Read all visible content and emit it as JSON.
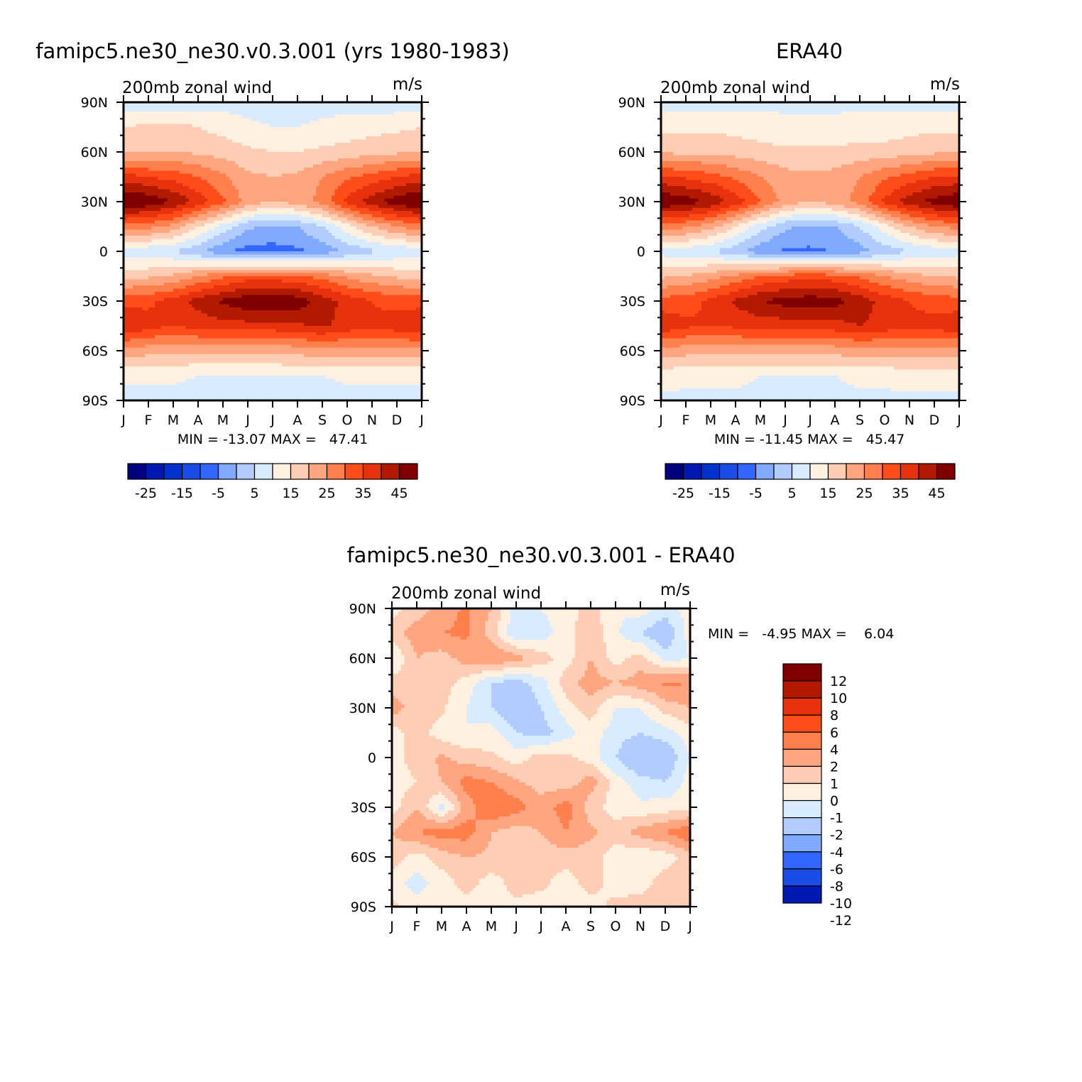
{
  "colors": {
    "diverging16": [
      "#00007f",
      "#0019b2",
      "#0033cc",
      "#1a4de6",
      "#3366ff",
      "#80aaff",
      "#b3ccff",
      "#d9ebff",
      "#fff0e0",
      "#ffcdb3",
      "#ffa680",
      "#ff7f4d",
      "#ff4d1a",
      "#e6330d",
      "#b21a00",
      "#800000"
    ],
    "diff14": [
      "#800000",
      "#b21a00",
      "#e6330d",
      "#ff4d1a",
      "#ff7f4d",
      "#ffa680",
      "#ffcdb3",
      "#fff0e0",
      "#d9ebff",
      "#b3ccff",
      "#80aaff",
      "#3366ff",
      "#1a4de6",
      "#0019b2"
    ]
  },
  "panels": {
    "model": {
      "main_title": "famipc5.ne30_ne30.v0.3.001 (yrs 1980-1983)",
      "left_label": "200mb zonal wind",
      "right_label": "m/s",
      "minmax": "MIN = -13.07 MAX =   47.41"
    },
    "obs": {
      "main_title": "ERA40",
      "left_label": "200mb zonal wind",
      "right_label": "m/s",
      "minmax": "MIN = -11.45 MAX =   45.47"
    },
    "diff": {
      "main_title": "famipc5.ne30_ne30.v0.3.001 - ERA40",
      "left_label": "200mb zonal wind",
      "right_label": "m/s",
      "minmax": "MIN =   -4.95 MAX =    6.04"
    }
  },
  "chart_data": [
    {
      "type": "heatmap",
      "title": "famipc5.ne30_ne30.v0.3.001 (yrs 1980-1983)",
      "subtitle": "200mb zonal wind",
      "units": "m/s",
      "x_ticks": [
        "J",
        "F",
        "M",
        "A",
        "M",
        "J",
        "J",
        "A",
        "S",
        "O",
        "N",
        "D",
        "J"
      ],
      "y_ticks": [
        "90N",
        "60N",
        "30N",
        "0",
        "30S",
        "60S",
        "90S"
      ],
      "colorbar_levels": [
        "-25",
        "-15",
        "-5",
        "5",
        "15",
        "25",
        "35",
        "45"
      ],
      "stats": {
        "min": -13.07,
        "max": 47.41
      },
      "field": {
        "months": [
          0,
          1,
          2,
          3,
          4,
          5,
          6,
          7,
          8,
          9,
          10,
          11,
          12
        ],
        "lat": [
          90,
          75,
          60,
          45,
          30,
          15,
          0,
          -15,
          -30,
          -45,
          -60,
          -75,
          -90
        ],
        "values": [
          [
            2,
            2,
            1,
            2,
            3,
            3,
            2,
            2,
            3,
            3,
            2,
            2,
            2
          ],
          [
            10,
            11,
            12,
            10,
            8,
            6,
            5,
            5,
            6,
            7,
            8,
            9,
            10
          ],
          [
            14,
            14,
            15,
            14,
            13,
            11,
            10,
            10,
            11,
            12,
            13,
            14,
            14
          ],
          [
            32,
            30,
            28,
            25,
            21,
            16,
            15,
            16,
            20,
            24,
            27,
            30,
            32
          ],
          [
            46,
            44,
            40,
            33,
            26,
            18,
            15,
            17,
            22,
            32,
            38,
            43,
            46
          ],
          [
            23,
            22,
            18,
            10,
            3,
            -4,
            -6,
            -5,
            0,
            8,
            15,
            20,
            23
          ],
          [
            2,
            1,
            0,
            -4,
            -9,
            -12,
            -12,
            -11,
            -8,
            -4,
            -1,
            1,
            2
          ],
          [
            13,
            14,
            16,
            20,
            24,
            27,
            27,
            26,
            23,
            19,
            16,
            14,
            13
          ],
          [
            28,
            29,
            32,
            37,
            41,
            44,
            45,
            43,
            38,
            33,
            30,
            28,
            28
          ],
          [
            35,
            32,
            30,
            32,
            33,
            33,
            33,
            34,
            36,
            33,
            31,
            33,
            35
          ],
          [
            18,
            17,
            16,
            16,
            16,
            16,
            16,
            17,
            18,
            18,
            18,
            18,
            18
          ],
          [
            6,
            6,
            6,
            5,
            5,
            5,
            5,
            5,
            5,
            6,
            6,
            6,
            6
          ],
          [
            3,
            3,
            3,
            3,
            3,
            3,
            3,
            3,
            3,
            3,
            3,
            3,
            3
          ]
        ]
      }
    },
    {
      "type": "heatmap",
      "title": "ERA40",
      "subtitle": "200mb zonal wind",
      "units": "m/s",
      "x_ticks": [
        "J",
        "F",
        "M",
        "A",
        "M",
        "J",
        "J",
        "A",
        "S",
        "O",
        "N",
        "D",
        "J"
      ],
      "y_ticks": [
        "90N",
        "60N",
        "30N",
        "0",
        "30S",
        "60S",
        "90S"
      ],
      "colorbar_levels": [
        "-25",
        "-15",
        "-5",
        "5",
        "15",
        "25",
        "35",
        "45"
      ],
      "stats": {
        "min": -11.45,
        "max": 45.47
      },
      "field": {
        "months": [
          0,
          1,
          2,
          3,
          4,
          5,
          6,
          7,
          8,
          9,
          10,
          11,
          12
        ],
        "lat": [
          90,
          75,
          60,
          45,
          30,
          15,
          0,
          -15,
          -30,
          -45,
          -60,
          -75,
          -90
        ],
        "values": [
          [
            3,
            3,
            3,
            3,
            4,
            4,
            4,
            4,
            4,
            4,
            3,
            3,
            3
          ],
          [
            9,
            9,
            9,
            8,
            7,
            6,
            6,
            6,
            7,
            7,
            8,
            9,
            9
          ],
          [
            14,
            14,
            14,
            13,
            12,
            11,
            11,
            11,
            12,
            12,
            13,
            14,
            14
          ],
          [
            31,
            29,
            27,
            24,
            20,
            17,
            16,
            17,
            20,
            24,
            27,
            30,
            31
          ],
          [
            45,
            43,
            39,
            33,
            25,
            18,
            15,
            17,
            22,
            31,
            38,
            42,
            45
          ],
          [
            22,
            21,
            17,
            10,
            2,
            -4,
            -6,
            -5,
            0,
            8,
            15,
            20,
            22
          ],
          [
            3,
            2,
            0,
            -3,
            -8,
            -11,
            -11,
            -10,
            -7,
            -3,
            0,
            2,
            3
          ],
          [
            14,
            15,
            18,
            21,
            25,
            27,
            28,
            27,
            24,
            20,
            17,
            15,
            14
          ],
          [
            27,
            28,
            31,
            36,
            40,
            42,
            43,
            42,
            38,
            33,
            30,
            28,
            27
          ],
          [
            34,
            31,
            30,
            31,
            32,
            32,
            32,
            33,
            35,
            33,
            31,
            32,
            34
          ],
          [
            18,
            17,
            17,
            17,
            17,
            17,
            17,
            17,
            18,
            18,
            18,
            18,
            18
          ],
          [
            7,
            6,
            6,
            6,
            5,
            5,
            5,
            5,
            6,
            6,
            7,
            7,
            7
          ],
          [
            4,
            4,
            4,
            4,
            4,
            4,
            4,
            4,
            4,
            4,
            4,
            4,
            4
          ]
        ]
      }
    },
    {
      "type": "heatmap",
      "title": "famipc5.ne30_ne30.v0.3.001 - ERA40",
      "subtitle": "200mb zonal wind",
      "units": "m/s",
      "x_ticks": [
        "J",
        "F",
        "M",
        "A",
        "M",
        "J",
        "J",
        "A",
        "S",
        "O",
        "N",
        "D",
        "J"
      ],
      "y_ticks": [
        "90N",
        "60N",
        "30N",
        "0",
        "30S",
        "60S",
        "90S"
      ],
      "colorbar_levels": [
        "12",
        "10",
        "8",
        "6",
        "4",
        "2",
        "1",
        "0",
        "-1",
        "-2",
        "-4",
        "-6",
        "-8",
        "-10",
        "-12"
      ],
      "stats": {
        "min": -4.95,
        "max": 6.04
      },
      "field": {
        "months": [
          0,
          1,
          2,
          3,
          4,
          5,
          6,
          7,
          8,
          9,
          10,
          11,
          12
        ],
        "lat": [
          90,
          75,
          60,
          45,
          30,
          15,
          0,
          -15,
          -30,
          -45,
          -60,
          -75,
          -90
        ],
        "values": [
          [
            -0.5,
            0.5,
            1.5,
            2.2,
            1,
            -1.5,
            -1,
            -0.5,
            0.5,
            -1,
            -0.5,
            -1.5,
            -0.5
          ],
          [
            0.5,
            1.5,
            2,
            2.2,
            0.5,
            -2,
            -1.5,
            -0.5,
            0.8,
            -0.8,
            -2,
            -3,
            -0.5
          ],
          [
            -1,
            1,
            0.5,
            1.5,
            2,
            1.5,
            0.5,
            -0.5,
            1,
            -0.5,
            0.5,
            -1.5,
            -1
          ],
          [
            0.5,
            0.3,
            0.5,
            -0.5,
            -2,
            -2.5,
            -1.5,
            0.5,
            1.5,
            1,
            1.5,
            2.2,
            2
          ],
          [
            1.5,
            0.5,
            0.2,
            -1,
            -2,
            -3,
            -2,
            -0.5,
            0.5,
            -1,
            -1,
            0.5,
            1
          ],
          [
            -0.5,
            0.5,
            -0.5,
            -1,
            -0.5,
            -2,
            -2.5,
            -1.5,
            -0.5,
            -1.5,
            -2,
            -1.5,
            -0.5
          ],
          [
            -0.5,
            0.5,
            1.2,
            0.5,
            0.2,
            -0.5,
            0.5,
            0.3,
            -0.5,
            -2,
            -3.5,
            -3,
            -1
          ],
          [
            -0.5,
            0,
            1,
            2.5,
            2,
            1.2,
            0.5,
            0.5,
            1.5,
            -0.5,
            -1.5,
            -2,
            -0.5
          ],
          [
            -0.5,
            1,
            -1.5,
            1.5,
            3,
            2.5,
            1.5,
            2.5,
            0.5,
            -0.5,
            -0.8,
            -0.5,
            -0.5
          ],
          [
            1,
            2,
            2.5,
            2.5,
            1,
            0.5,
            1,
            2,
            1.2,
            0.5,
            1.5,
            2,
            3
          ],
          [
            0.5,
            -0.5,
            0.5,
            1,
            0.8,
            0.5,
            0.5,
            0.5,
            0.5,
            -0.5,
            -1,
            -0.5,
            0.5
          ],
          [
            -0.5,
            -1.5,
            -0.5,
            0.5,
            -0.5,
            0.5,
            0.3,
            -0.5,
            0.5,
            -0.5,
            -0.5,
            0.5,
            0.5
          ],
          [
            0.3,
            -0.5,
            -0.5,
            -0.5,
            -0.5,
            -0.3,
            -0.5,
            -1,
            -0.5,
            0.3,
            0.5,
            0.5,
            0.3
          ]
        ]
      }
    }
  ]
}
